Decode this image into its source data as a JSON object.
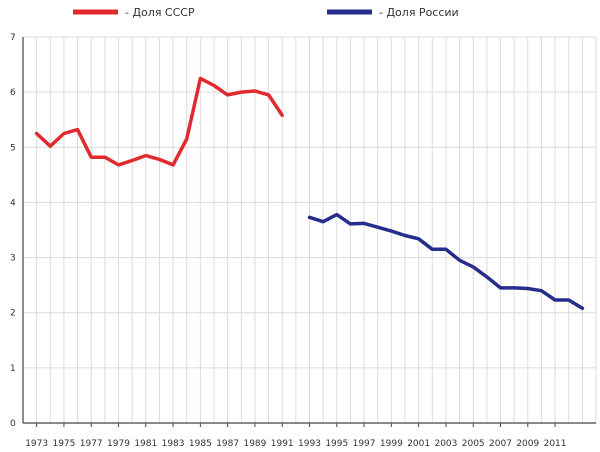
{
  "chart_data": {
    "type": "line",
    "title": "",
    "xlabel": "",
    "ylabel": "",
    "xlim": [
      1972,
      2014
    ],
    "ylim": [
      0,
      7
    ],
    "grid": true,
    "legend_position": "top",
    "x_ticks": [
      1973,
      1975,
      1977,
      1979,
      1981,
      1983,
      1985,
      1987,
      1989,
      1991,
      1993,
      1995,
      1997,
      1999,
      2001,
      2003,
      2005,
      2007,
      2009,
      2011
    ],
    "y_ticks": [
      0,
      1,
      2,
      3,
      4,
      5,
      6,
      7
    ],
    "series": [
      {
        "name": "- Доля СССР",
        "color": "#e02a2e",
        "x": [
          1973,
          1974,
          1975,
          1976,
          1977,
          1978,
          1979,
          1980,
          1981,
          1982,
          1983,
          1984,
          1985,
          1986,
          1987,
          1988,
          1989,
          1990,
          1991
        ],
        "values": [
          5.25,
          5.02,
          5.25,
          5.32,
          4.82,
          4.82,
          4.68,
          4.76,
          4.85,
          4.78,
          4.68,
          5.15,
          6.25,
          6.12,
          5.95,
          6.0,
          6.02,
          5.95,
          5.58
        ]
      },
      {
        "name": "- Доля России",
        "color": "#262d8c",
        "x": [
          1993,
          1994,
          1995,
          1996,
          1997,
          1998,
          1999,
          2000,
          2001,
          2002,
          2003,
          2004,
          2005,
          2006,
          2007,
          2008,
          2009,
          2010,
          2011,
          2012,
          2013
        ],
        "values": [
          3.73,
          3.65,
          3.78,
          3.61,
          3.62,
          3.55,
          3.48,
          3.4,
          3.34,
          3.15,
          3.15,
          2.95,
          2.83,
          2.65,
          2.45,
          2.45,
          2.44,
          2.4,
          2.23,
          2.23,
          2.08
        ]
      }
    ]
  }
}
